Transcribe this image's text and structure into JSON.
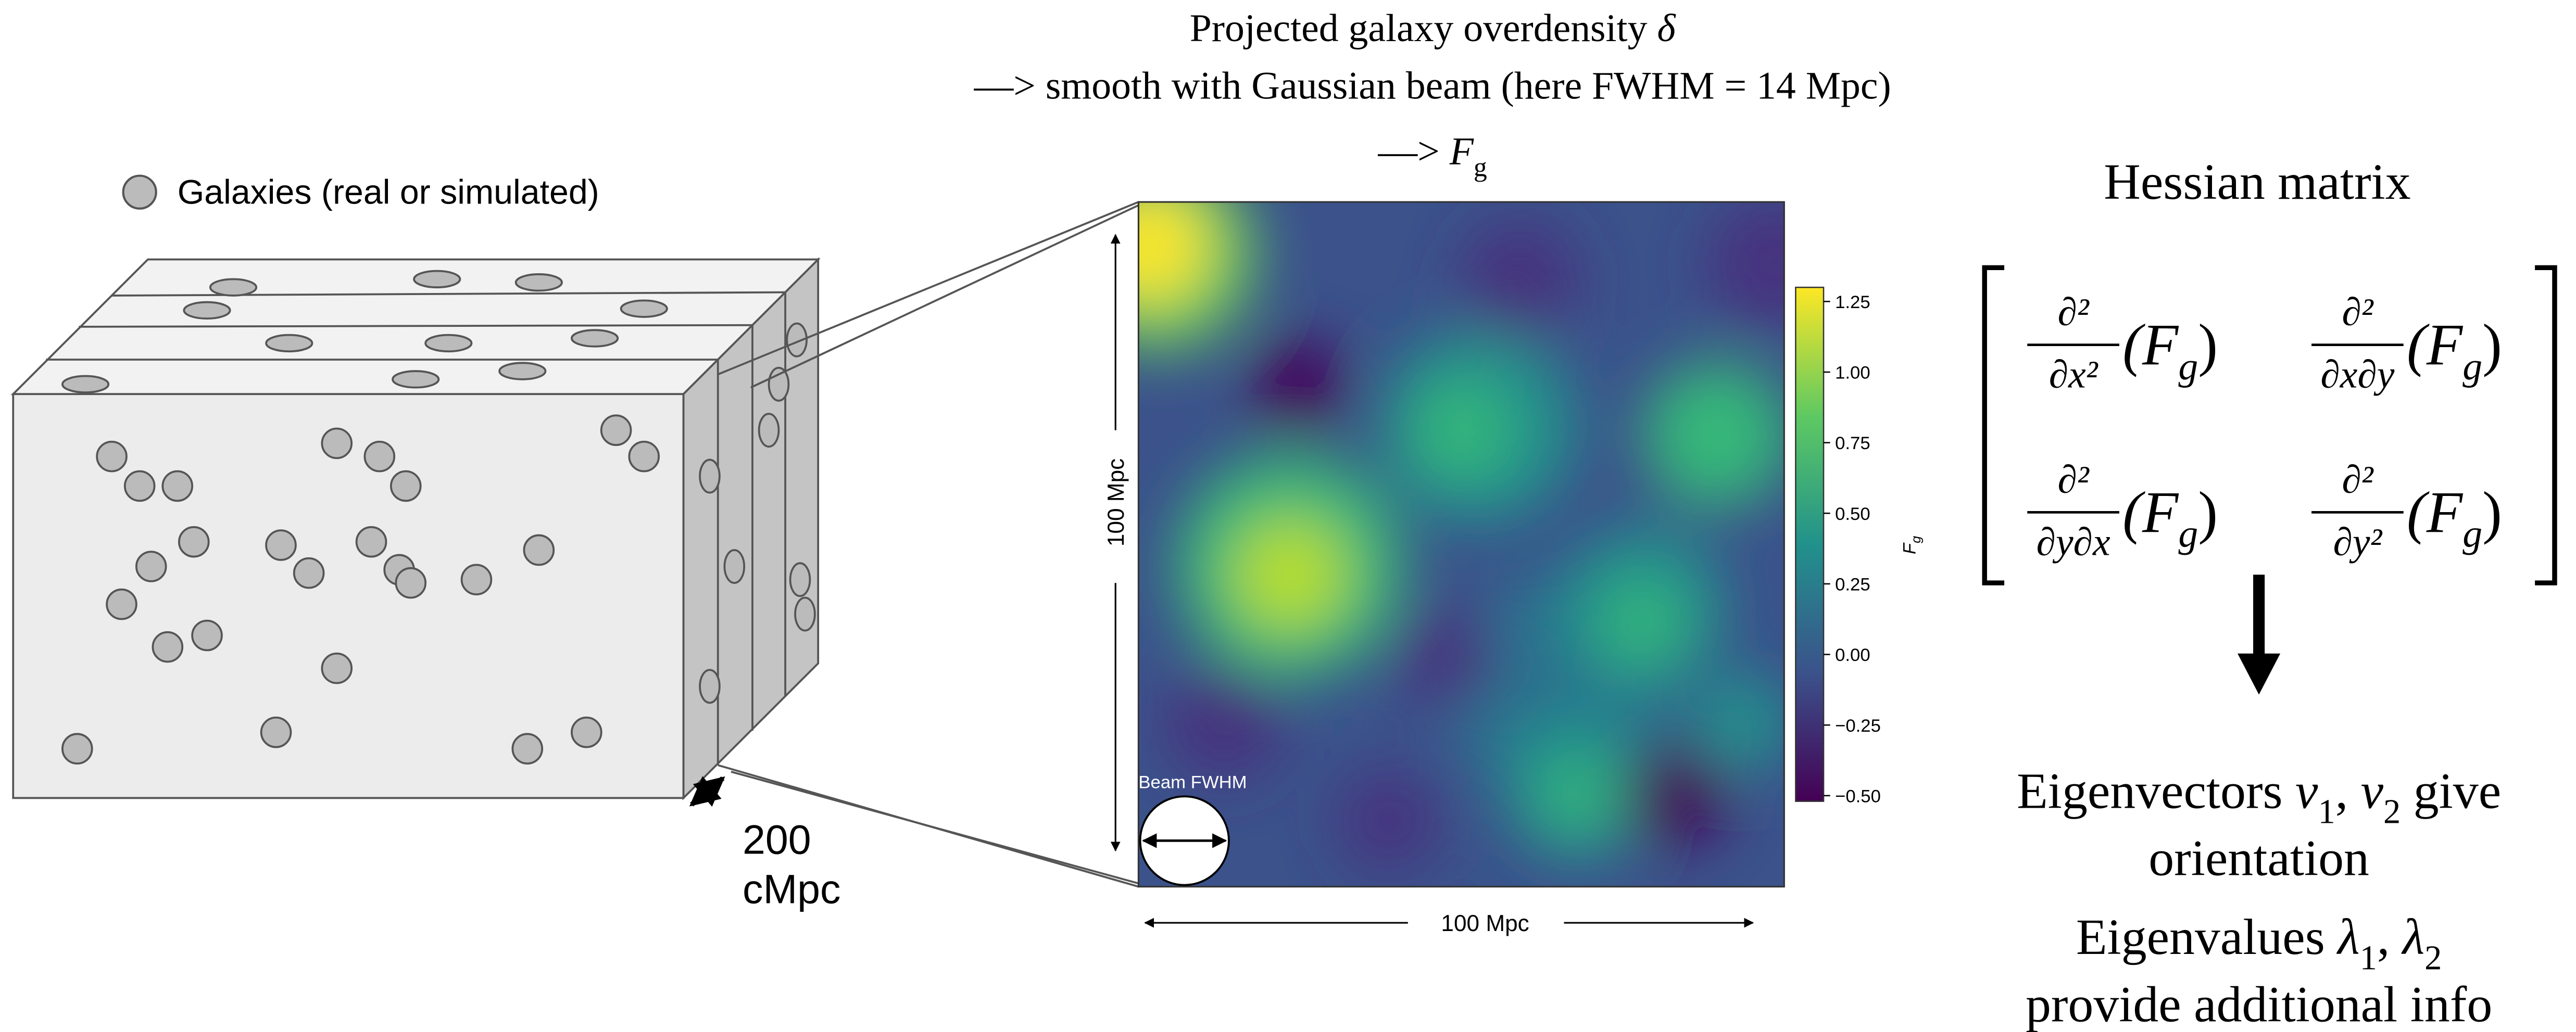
{
  "legend": {
    "label": "Galaxies (real or simulated)"
  },
  "box": {
    "depth_label": [
      "200",
      "cMpc"
    ]
  },
  "map_title": {
    "lines": [
      [
        {
          "text": "Projected galaxy overdensity "
        },
        {
          "text": "δ",
          "italic": true
        }
      ],
      [
        {
          "text": "—> smooth with Gaussian beam (here FWHM = 14 Mpc)"
        }
      ],
      [
        {
          "text": "—> "
        },
        {
          "text": "F",
          "italic": true,
          "sub": "g"
        }
      ]
    ]
  },
  "map": {
    "y_axis_label": "100 Mpc",
    "x_axis_label": "100 Mpc",
    "beam_label": "Beam FWHM",
    "colorbar": {
      "label": {
        "text": "F",
        "sub": "g"
      },
      "clim": [
        -0.52,
        1.3
      ],
      "ticks": [
        1.25,
        {
          "value": 1.0,
          "label": "1.00"
        },
        0.75,
        {
          "value": 0.5,
          "label": "0.50"
        },
        0.25,
        {
          "value": 0.0,
          "label": "0.00"
        },
        {
          "value": -0.25,
          "label": "−0.25"
        },
        {
          "value": -0.5,
          "label": "−0.50"
        }
      ]
    }
  },
  "hessian": {
    "title": "Hessian matrix",
    "entries": [
      {
        "numerator": "∂²",
        "denominator": "∂x²",
        "open": "(F",
        "sub": "g",
        "close": ")"
      },
      {
        "numerator": "∂²",
        "denominator": "∂x∂y",
        "open": "(F",
        "sub": "g",
        "close": ")"
      },
      {
        "numerator": "∂²",
        "denominator": "∂y∂x",
        "open": "(F",
        "sub": "g",
        "close": ")"
      },
      {
        "numerator": "∂²",
        "denominator": "∂y²",
        "open": "(F",
        "sub": "g",
        "close": ")"
      }
    ]
  },
  "eigen": {
    "lines": [
      [
        {
          "text": "Eigenvectors "
        },
        {
          "text": "v",
          "italic": true,
          "sub": "1"
        },
        {
          "text": ", "
        },
        {
          "text": "v",
          "italic": true,
          "sub": "2"
        },
        {
          "text": " give"
        }
      ],
      [
        {
          "text": "orientation"
        }
      ],
      [
        {
          "text": "Eigenvalues "
        },
        {
          "text": "λ",
          "italic": true,
          "sub": "1"
        },
        {
          "text": ", "
        },
        {
          "text": "λ",
          "italic": true,
          "sub": "2"
        }
      ],
      [
        {
          "text": "provide additional info"
        }
      ]
    ]
  }
}
